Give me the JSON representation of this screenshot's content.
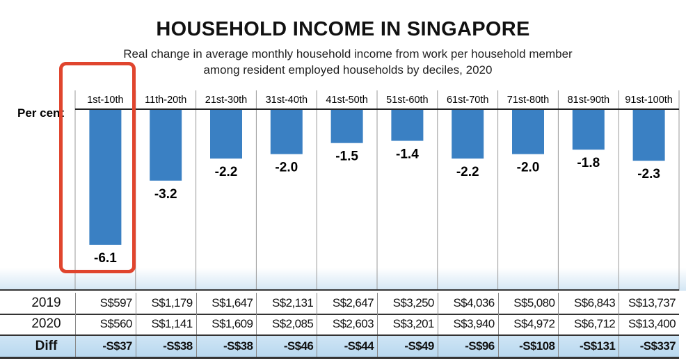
{
  "chart_data": {
    "type": "bar",
    "title": "HOUSEHOLD INCOME IN SINGAPORE",
    "subtitle": "Real change in average monthly household income from work per household member among resident employed households by deciles, 2020",
    "ylabel": "Per cent",
    "categories": [
      "1st-10th",
      "11th-20th",
      "21st-30th",
      "31st-40th",
      "41st-50th",
      "51st-60th",
      "61st-70th",
      "71st-80th",
      "81st-90th",
      "91st-100th"
    ],
    "values": [
      -6.1,
      -3.2,
      -2.2,
      -2.0,
      -1.5,
      -1.4,
      -2.2,
      -2.0,
      -1.8,
      -2.3
    ],
    "value_labels": [
      "-6.1",
      "-3.2",
      "-2.2",
      "-2.0",
      "-1.5",
      "-1.4",
      "-2.2",
      "-2.0",
      "-1.8",
      "-2.3"
    ],
    "ylim": [
      -6.5,
      0
    ],
    "bar_color": "#3a80c3",
    "highlight_color": "#e0452e",
    "highlighted_category": "1st-10th"
  },
  "table": {
    "rows": [
      {
        "label": "2019",
        "cells": [
          "S$597",
          "S$1,179",
          "S$1,647",
          "S$2,131",
          "S$2,647",
          "S$3,250",
          "S$4,036",
          "S$5,080",
          "S$6,843",
          "S$13,737"
        ]
      },
      {
        "label": "2020",
        "cells": [
          "S$560",
          "S$1,141",
          "S$1,609",
          "S$2,085",
          "S$2,603",
          "S$3,201",
          "S$3,940",
          "S$4,972",
          "S$6,712",
          "S$13,400"
        ]
      },
      {
        "label": "Diff",
        "cells": [
          "-S$37",
          "-S$38",
          "-S$38",
          "-S$46",
          "-S$44",
          "-S$49",
          "-S$96",
          "-S$108",
          "-S$131",
          "-S$337"
        ]
      }
    ]
  }
}
